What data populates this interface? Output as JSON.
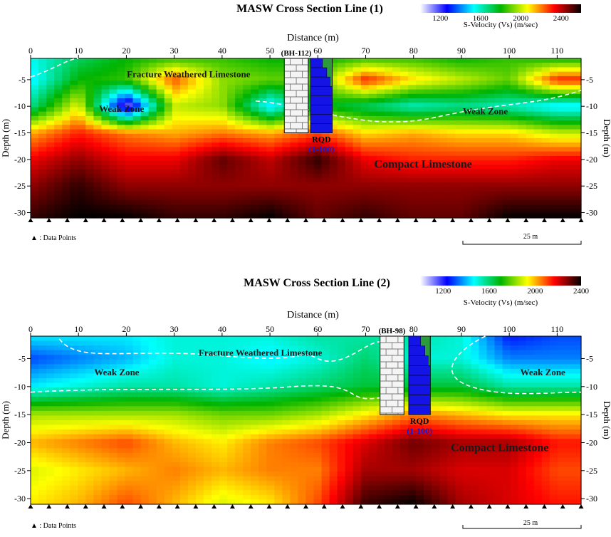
{
  "chart_data": [
    {
      "type": "heatmap",
      "title": "MASW Cross Section Line (1)",
      "xlabel": "Distance (m)",
      "ylabel_left": "Depth (m)",
      "ylabel_right": "Depth (m)",
      "xlim": [
        0,
        115
      ],
      "ylim": [
        -31,
        -1
      ],
      "x_ticks": [
        "0",
        "10",
        "20",
        "30",
        "40",
        "50",
        "60",
        "70",
        "80",
        "90",
        "100",
        "110"
      ],
      "y_ticks": [
        "-5",
        "-10",
        "-15",
        "-20",
        "-25",
        "-30"
      ],
      "colorbar": {
        "label": "S-Velocity (Vs) (m/sec)",
        "ticks": [
          "1200",
          "1600",
          "2000",
          "2400"
        ],
        "range": [
          1000,
          2600
        ],
        "colors": [
          "#ffffff",
          "#0000ff",
          "#00ffff",
          "#00b400",
          "#ffff00",
          "#ff0000",
          "#000000"
        ]
      },
      "borehole": {
        "label": "(BH-112)",
        "x_range": [
          53,
          58
        ],
        "depth_range": [
          -1,
          -15
        ]
      },
      "rqd": {
        "label": "RQD",
        "range_label": "(1-100)",
        "x_range": [
          58.5,
          63
        ],
        "depth_range": [
          -1,
          -15
        ]
      },
      "annotations": [
        {
          "text": "Fracture Weathered Limestone",
          "x": 33,
          "y": -4
        },
        {
          "text": "Weak Zone",
          "x": 19,
          "y": -10.5
        },
        {
          "text": "Weak Zone",
          "x": 95,
          "y": -11
        },
        {
          "text": "Compact Limestone",
          "x": 82,
          "y": -21
        }
      ],
      "data_points_legend": "▲ : Data Points",
      "scale_bar_label": "25 m",
      "data_point_x": [
        0,
        5,
        10,
        15,
        20,
        25,
        30,
        35,
        40,
        45,
        50,
        55,
        60,
        65,
        70,
        75,
        80,
        85,
        90,
        95,
        100,
        105,
        110,
        115
      ],
      "depth_samples": [
        -1,
        -5,
        -10,
        -15,
        -20,
        -25,
        -31
      ],
      "velocity_profiles": [
        {
          "x": 0,
          "vs": [
            1550,
            1500,
            1650,
            2150,
            2350,
            2450,
            2550
          ]
        },
        {
          "x": 10,
          "vs": [
            1700,
            1800,
            2050,
            2300,
            2450,
            2550,
            2600
          ]
        },
        {
          "x": 20,
          "vs": [
            1800,
            1850,
            1100,
            2200,
            2350,
            2450,
            2600
          ]
        },
        {
          "x": 30,
          "vs": [
            1850,
            2250,
            2000,
            2150,
            2350,
            2450,
            2550
          ]
        },
        {
          "x": 40,
          "vs": [
            1850,
            1950,
            1950,
            2200,
            2500,
            2450,
            2550
          ]
        },
        {
          "x": 50,
          "vs": [
            1800,
            1900,
            1500,
            2150,
            2400,
            2450,
            2600
          ]
        },
        {
          "x": 60,
          "vs": [
            1800,
            1900,
            1800,
            2250,
            2550,
            2450,
            2500
          ]
        },
        {
          "x": 70,
          "vs": [
            1850,
            2300,
            1700,
            2100,
            2350,
            2450,
            2550
          ]
        },
        {
          "x": 80,
          "vs": [
            1850,
            2100,
            1600,
            2150,
            2300,
            2450,
            2500
          ]
        },
        {
          "x": 90,
          "vs": [
            1800,
            2000,
            1650,
            2100,
            2300,
            2450,
            2500
          ]
        },
        {
          "x": 100,
          "vs": [
            1850,
            1900,
            1600,
            2100,
            2300,
            2450,
            2600
          ]
        },
        {
          "x": 110,
          "vs": [
            1800,
            2300,
            1500,
            2000,
            2350,
            2450,
            2600
          ]
        }
      ]
    },
    {
      "type": "heatmap",
      "title": "MASW Cross Section Line (2)",
      "xlabel": "Distance (m)",
      "ylabel_left": "Depth (m)",
      "ylabel_right": "Depth (m)",
      "xlim": [
        0,
        115
      ],
      "ylim": [
        -31,
        -1
      ],
      "x_ticks": [
        "0",
        "10",
        "20",
        "30",
        "40",
        "50",
        "60",
        "70",
        "80",
        "90",
        "100",
        "110"
      ],
      "y_ticks": [
        "-5",
        "-10",
        "-15",
        "-20",
        "-25",
        "-30"
      ],
      "colorbar": {
        "label": "S-Velocity (Vs) (m/sec)",
        "ticks": [
          "1200",
          "1600",
          "2000",
          "2400"
        ],
        "range": [
          1000,
          2400
        ],
        "colors": [
          "#ffffff",
          "#0000ff",
          "#00ffff",
          "#00b400",
          "#ffff00",
          "#ff0000",
          "#000000"
        ]
      },
      "borehole": {
        "label": "(BH-98)",
        "x_range": [
          73,
          78
        ],
        "depth_range": [
          -1,
          -15
        ]
      },
      "rqd": {
        "label": "RQD",
        "range_label": "(1-100)",
        "x_range": [
          79,
          83.5
        ],
        "depth_range": [
          -1,
          -15
        ]
      },
      "annotations": [
        {
          "text": "Fracture Weathered Limestone",
          "x": 48,
          "y": -4
        },
        {
          "text": "Weak Zone",
          "x": 18,
          "y": -7.5
        },
        {
          "text": "Weak Zone",
          "x": 107,
          "y": -7.5
        },
        {
          "text": "Compact Limestone",
          "x": 98,
          "y": -21
        }
      ],
      "data_points_legend": "▲ : Data Points",
      "scale_bar_label": "25 m",
      "data_point_x": [
        0,
        5,
        10,
        15,
        20,
        25,
        30,
        35,
        40,
        45,
        50,
        55,
        60,
        65,
        70,
        75,
        80,
        85,
        90,
        95,
        100,
        105,
        110,
        115
      ],
      "depth_samples": [
        -1,
        -5,
        -10,
        -15,
        -20,
        -25,
        -31
      ],
      "velocity_profiles": [
        {
          "x": 0,
          "vs": [
            1450,
            1300,
            1450,
            1850,
            2000,
            1900,
            1950
          ]
        },
        {
          "x": 10,
          "vs": [
            1450,
            1350,
            1500,
            1850,
            2050,
            1950,
            2000
          ]
        },
        {
          "x": 20,
          "vs": [
            1450,
            1400,
            1550,
            1850,
            2100,
            2000,
            2100
          ]
        },
        {
          "x": 30,
          "vs": [
            1500,
            1500,
            1550,
            1850,
            2000,
            2050,
            2000
          ]
        },
        {
          "x": 40,
          "vs": [
            1500,
            1500,
            1500,
            1800,
            1950,
            2000,
            1900
          ]
        },
        {
          "x": 50,
          "vs": [
            1500,
            1450,
            1550,
            1800,
            2050,
            2050,
            1950
          ]
        },
        {
          "x": 60,
          "vs": [
            1550,
            1500,
            1600,
            1850,
            2100,
            2050,
            2100
          ]
        },
        {
          "x": 70,
          "vs": [
            1550,
            1600,
            1650,
            1950,
            2200,
            2250,
            2350
          ]
        },
        {
          "x": 80,
          "vs": [
            1550,
            1500,
            1650,
            2050,
            2300,
            2250,
            2400
          ]
        },
        {
          "x": 90,
          "vs": [
            1500,
            1500,
            1650,
            2000,
            2250,
            2200,
            2250
          ]
        },
        {
          "x": 100,
          "vs": [
            1250,
            1350,
            1550,
            1950,
            2250,
            2200,
            2200
          ]
        },
        {
          "x": 110,
          "vs": [
            1300,
            1350,
            1550,
            1950,
            2150,
            2100,
            2150
          ]
        }
      ]
    }
  ]
}
